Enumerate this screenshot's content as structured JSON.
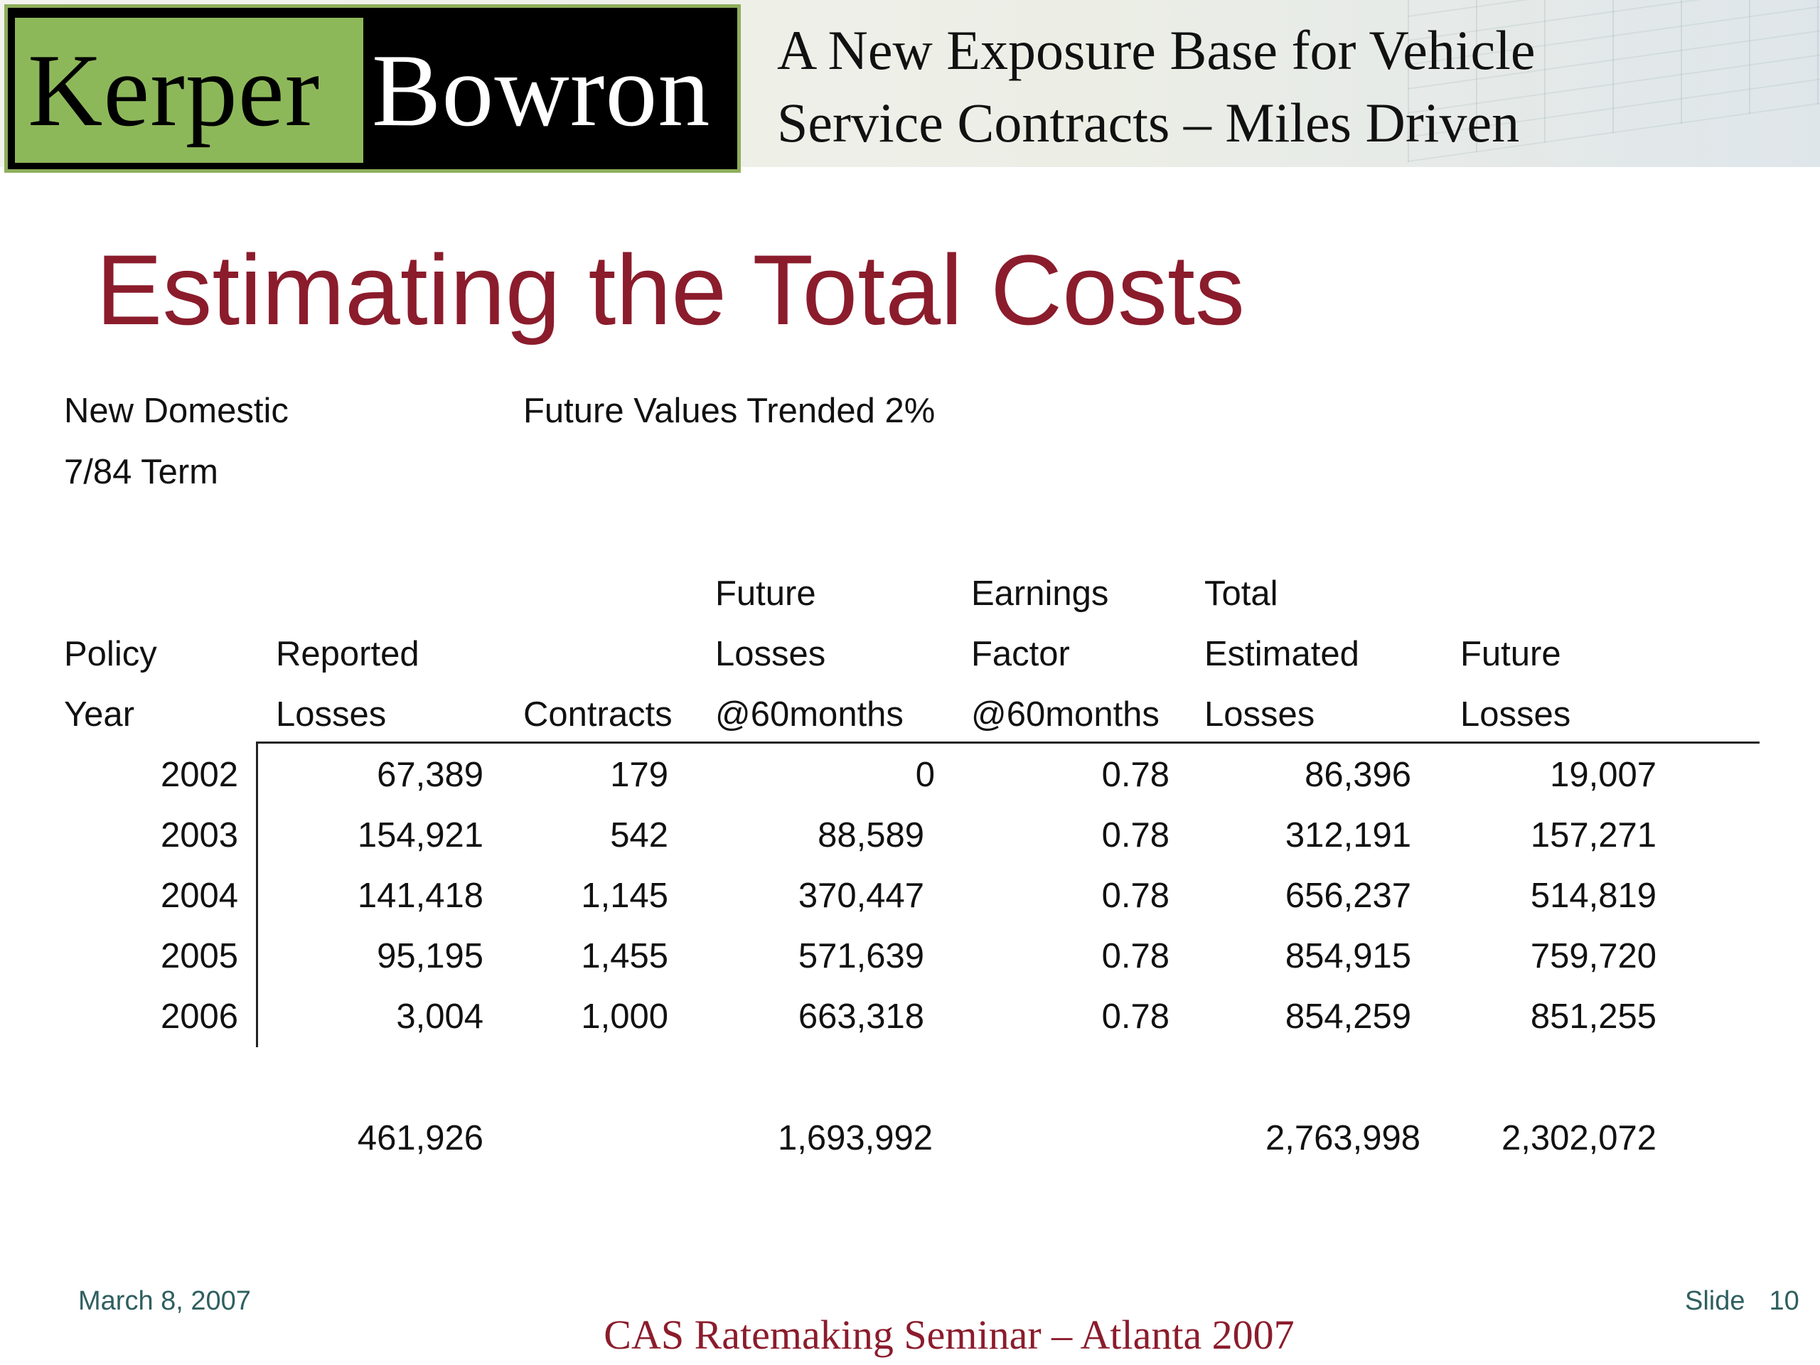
{
  "header": {
    "logo_left": "Kerper",
    "logo_right": "Bowron",
    "title_line1": "A New Exposure Base for Vehicle",
    "title_line2": "Service Contracts – Miles Driven"
  },
  "slide": {
    "title": "Estimating the Total Costs",
    "subtitle_left_1": "New Domestic",
    "subtitle_left_2": "7/84 Term",
    "subtitle_right": "Future Values Trended 2%"
  },
  "table": {
    "headers": {
      "policy_year": [
        "Policy",
        "Year"
      ],
      "reported_losses": [
        "Reported",
        "Losses"
      ],
      "contracts": [
        "Contracts"
      ],
      "future_losses_60": [
        "Future",
        "Losses",
        "@60months"
      ],
      "earnings_factor": [
        "Earnings",
        "Factor",
        "@60months"
      ],
      "total_estimated": [
        "Total",
        "Estimated",
        "Losses"
      ],
      "future_losses": [
        "Future",
        "Losses"
      ]
    },
    "rows": [
      {
        "year": "2002",
        "reported": "67,389",
        "contracts": "179",
        "future60": "0",
        "factor": "0.78",
        "total": "86,396",
        "future": "19,007"
      },
      {
        "year": "2003",
        "reported": "154,921",
        "contracts": "542",
        "future60": "88,589",
        "factor": "0.78",
        "total": "312,191",
        "future": "157,271"
      },
      {
        "year": "2004",
        "reported": "141,418",
        "contracts": "1,145",
        "future60": "370,447",
        "factor": "0.78",
        "total": "656,237",
        "future": "514,819"
      },
      {
        "year": "2005",
        "reported": "95,195",
        "contracts": "1,455",
        "future60": "571,639",
        "factor": "0.78",
        "total": "854,915",
        "future": "759,720"
      },
      {
        "year": "2006",
        "reported": "3,004",
        "contracts": "1,000",
        "future60": "663,318",
        "factor": "0.78",
        "total": "854,259",
        "future": "851,255"
      }
    ],
    "totals": {
      "reported": "461,926",
      "future60": "1,693,992",
      "total": "2,763,998",
      "future": "2,302,072"
    }
  },
  "footer": {
    "date": "March 8, 2007",
    "slide_label": "Slide",
    "slide_number": "10",
    "seminar": "CAS Ratemaking Seminar – Atlanta 2007"
  }
}
